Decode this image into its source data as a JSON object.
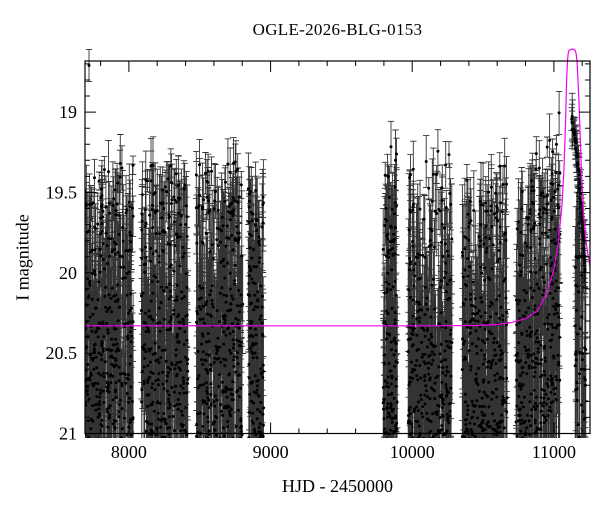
{
  "figure": {
    "background": "#ffffff",
    "title": "OGLE-2026-BLG-0153",
    "xlabel": "HJD - 2450000",
    "ylabel": "I magnitude"
  },
  "chart_data": {
    "type": "scatter",
    "title": "OGLE-2026-BLG-0153",
    "xlabel": "HJD - 2450000",
    "ylabel": "I magnitude",
    "grid": false,
    "legend": "none",
    "x_axis": {
      "lim": [
        7690,
        11255
      ],
      "major_ticks": [
        8000,
        9000,
        10000,
        11000
      ],
      "major_tick_labels": [
        "8000",
        "9000",
        "10000",
        "11000"
      ],
      "minor_step": 200
    },
    "y_axis": {
      "inverted": true,
      "lim_bottom_top": [
        21.0,
        18.682
      ],
      "major_ticks": [
        19,
        19.5,
        20,
        20.5,
        21
      ],
      "major_tick_labels": [
        "19",
        "19.5",
        "20",
        "20.5",
        "21"
      ],
      "minor_step": 0.1
    },
    "marker_color": "#000000",
    "errorbar_color": "#000000",
    "model_color": "#f400f4",
    "baseline_mag": 20.33,
    "event": {
      "t_peak_approx": 11130,
      "peak_mag_approx": 18.61
    },
    "model_curve": [
      [
        7690,
        20.33
      ],
      [
        9000,
        20.33
      ],
      [
        10200,
        20.33
      ],
      [
        10450,
        20.328
      ],
      [
        10600,
        20.322
      ],
      [
        10700,
        20.31
      ],
      [
        10800,
        20.285
      ],
      [
        10880,
        20.24
      ],
      [
        10950,
        20.13
      ],
      [
        11000,
        19.98
      ],
      [
        11030,
        19.82
      ],
      [
        11055,
        19.6
      ],
      [
        11070,
        19.38
      ],
      [
        11082,
        19.08
      ],
      [
        11090,
        18.8
      ],
      [
        11096,
        18.68
      ],
      [
        11101,
        18.635
      ],
      [
        11108,
        18.615
      ],
      [
        11130,
        18.607
      ],
      [
        11150,
        18.615
      ],
      [
        11157,
        18.635
      ],
      [
        11163,
        18.68
      ],
      [
        11170,
        18.8
      ],
      [
        11177,
        18.94
      ],
      [
        11185,
        19.13
      ],
      [
        11196,
        19.39
      ],
      [
        11210,
        19.64
      ],
      [
        11225,
        19.79
      ],
      [
        11240,
        19.885
      ],
      [
        11255,
        19.965
      ]
    ],
    "seasons": [
      {
        "name": "season-1",
        "t_start": 7690,
        "t_end": 8030,
        "n": 340,
        "top_mag": 19.3,
        "follow_model": 0,
        "seed": 1007
      },
      {
        "name": "season-2",
        "t_start": 8085,
        "t_end": 8418,
        "n": 330,
        "top_mag": 19.32,
        "follow_model": 0,
        "seed": 2007
      },
      {
        "name": "season-3",
        "t_start": 8475,
        "t_end": 8806,
        "n": 330,
        "top_mag": 19.3,
        "follow_model": 0,
        "seed": 3007
      },
      {
        "name": "season-4",
        "t_start": 8842,
        "t_end": 8950,
        "n": 130,
        "top_mag": 19.42,
        "follow_model": 0,
        "seed": 4007
      },
      {
        "name": "season-5",
        "t_start": 9794,
        "t_end": 9895,
        "n": 140,
        "top_mag": 19.2,
        "follow_model": 0,
        "seed": 5007
      },
      {
        "name": "season-6",
        "t_start": 9970,
        "t_end": 10280,
        "n": 300,
        "top_mag": 19.22,
        "follow_model": 0,
        "seed": 6007
      },
      {
        "name": "season-7",
        "t_start": 10350,
        "t_end": 10670,
        "n": 300,
        "top_mag": 19.28,
        "follow_model": 0,
        "seed": 7007
      },
      {
        "name": "season-8",
        "t_start": 10732,
        "t_end": 11043,
        "n": 320,
        "top_mag": 19.3,
        "follow_model": 0.6,
        "seed": 8007
      },
      {
        "name": "season-9-column",
        "t_start": 11150,
        "t_end": 11228,
        "n": 60,
        "top_mag": 19.9,
        "follow_model": 0,
        "seed": 9007
      }
    ],
    "event_followers": {
      "t_start": 11126,
      "t_end": 11220,
      "n": 55,
      "seed": 99,
      "track": [
        [
          11126,
          19.02
        ],
        [
          11140,
          19.11
        ],
        [
          11155,
          19.22
        ],
        [
          11170,
          19.36
        ],
        [
          11185,
          19.5
        ],
        [
          11198,
          19.63
        ],
        [
          11208,
          19.77
        ],
        [
          11219,
          19.97
        ]
      ]
    },
    "outlier_points": [
      [
        7718,
        18.71,
        0.1
      ]
    ]
  }
}
